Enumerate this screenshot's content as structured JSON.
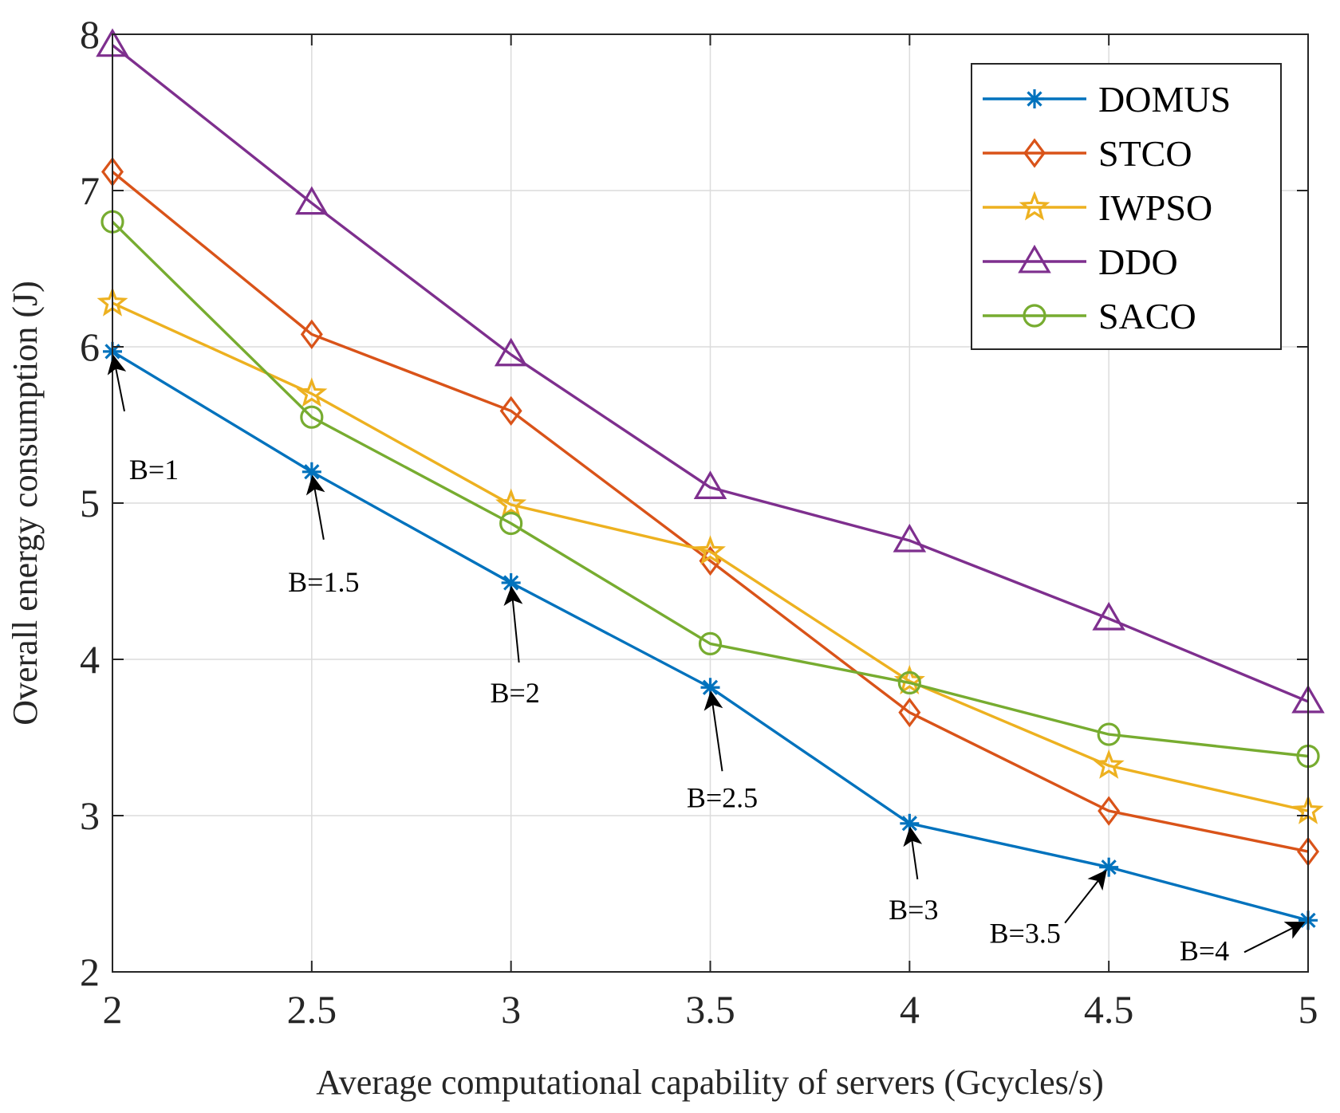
{
  "chart_data": {
    "type": "line",
    "xlabel": "Average computational capability of servers (Gcycles/s)",
    "ylabel": "Overall energy consumption (J)",
    "xlim": [
      2,
      5
    ],
    "ylim": [
      2,
      8
    ],
    "grid": true,
    "legend_position": "top-right",
    "x_ticks": [
      "2",
      "2.5",
      "3",
      "3.5",
      "4",
      "4.5",
      "5"
    ],
    "y_ticks": [
      "2",
      "3",
      "4",
      "5",
      "6",
      "7",
      "8"
    ],
    "x": [
      2,
      2.5,
      3,
      3.5,
      4,
      4.5,
      5
    ],
    "series": [
      {
        "name": "DOMUS",
        "marker": "asterisk",
        "color": "#0072BD",
        "values": [
          5.97,
          5.2,
          4.49,
          3.82,
          2.95,
          2.67,
          2.33
        ]
      },
      {
        "name": "STCO",
        "marker": "diamond",
        "color": "#D95319",
        "values": [
          7.12,
          6.08,
          5.59,
          4.63,
          3.66,
          3.03,
          2.77
        ]
      },
      {
        "name": "IWPSO",
        "marker": "star",
        "color": "#EDB120",
        "values": [
          6.28,
          5.7,
          4.99,
          4.69,
          3.86,
          3.32,
          3.03
        ]
      },
      {
        "name": "DDO",
        "marker": "triangle",
        "color": "#7E2F8E",
        "values": [
          7.93,
          6.92,
          5.95,
          5.1,
          4.76,
          4.26,
          3.73
        ]
      },
      {
        "name": "SACO",
        "marker": "circle",
        "color": "#77AC30",
        "values": [
          6.8,
          5.55,
          4.87,
          4.1,
          3.85,
          3.52,
          3.38
        ]
      }
    ],
    "annotations": [
      {
        "text": "B=1",
        "x": 2.0,
        "y": 5.97
      },
      {
        "text": "B=1.5",
        "x": 2.5,
        "y": 5.2
      },
      {
        "text": "B=2",
        "x": 3.0,
        "y": 4.49
      },
      {
        "text": "B=2.5",
        "x": 3.5,
        "y": 3.82
      },
      {
        "text": "B=3",
        "x": 4.0,
        "y": 2.95
      },
      {
        "text": "B=3.5",
        "x": 4.5,
        "y": 2.67
      },
      {
        "text": "B=4",
        "x": 5.0,
        "y": 2.33
      }
    ]
  }
}
